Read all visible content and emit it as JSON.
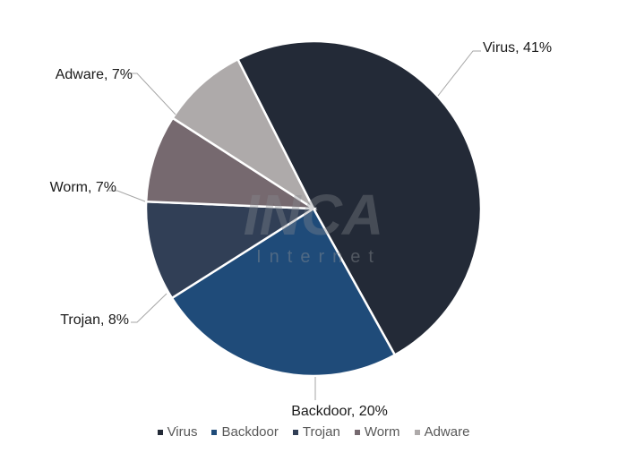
{
  "chart_data": {
    "type": "pie",
    "categories": [
      "Virus",
      "Backdoor",
      "Trojan",
      "Worm",
      "Adware"
    ],
    "values": [
      41,
      20,
      8,
      7,
      7
    ],
    "data_labels": [
      "Virus, 41%",
      "Backdoor, 20%",
      "Trojan, 8%",
      "Worm, 7%",
      "Adware, 7%"
    ],
    "colors": [
      "#232a37",
      "#1f4b79",
      "#313f56",
      "#76696f",
      "#aeaaaa"
    ],
    "legend": {
      "position": "bottom",
      "entries": [
        "Virus",
        "Backdoor",
        "Trojan",
        "Worm",
        "Adware"
      ]
    }
  },
  "watermark": {
    "logo": "INCA",
    "subtitle": "Internet"
  }
}
